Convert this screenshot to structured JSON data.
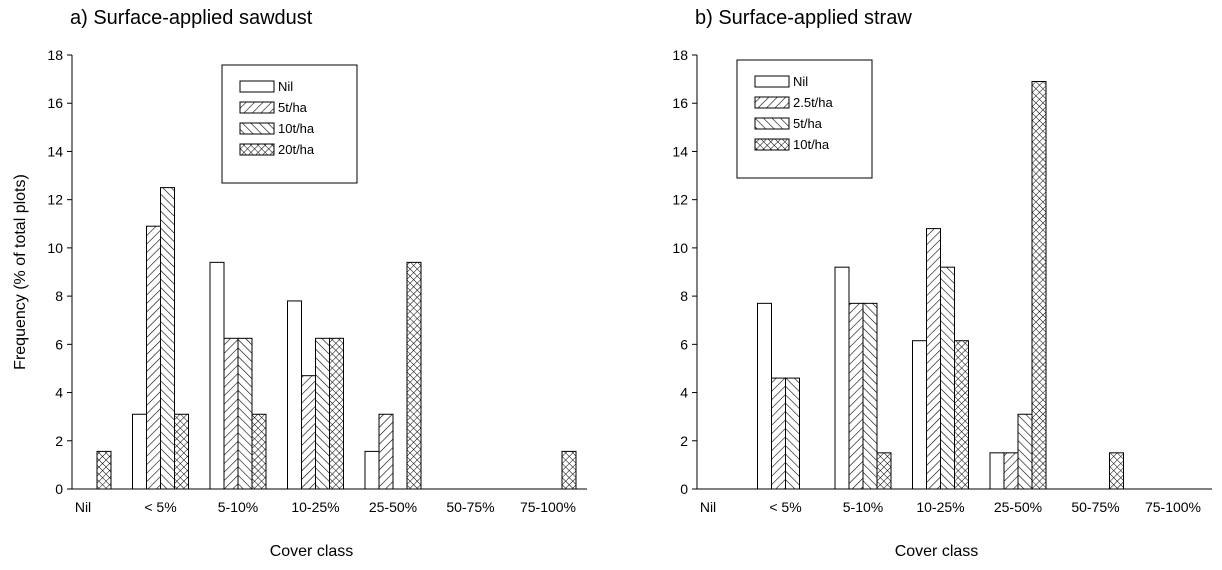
{
  "chart_data": [
    {
      "type": "bar",
      "title": "a) Surface-applied sawdust",
      "x_label": "Cover class",
      "y_label": "Frequency (% of total plots)",
      "categories": [
        "Nil",
        "< 5%",
        "5-10%",
        "10-25%",
        "25-50%",
        "50-75%",
        "75-100%"
      ],
      "series": [
        {
          "name": "Nil",
          "color": "#000000",
          "pattern": "none",
          "values": [
            0,
            3.1,
            9.4,
            7.8,
            1.56,
            0,
            0
          ]
        },
        {
          "name": "5t/ha",
          "color": "#000000",
          "pattern": "forward",
          "values": [
            0,
            10.9,
            6.25,
            4.7,
            3.1,
            0,
            0
          ]
        },
        {
          "name": "10t/ha",
          "color": "#000000",
          "pattern": "backward",
          "values": [
            0,
            12.5,
            6.25,
            6.25,
            0,
            0,
            0
          ]
        },
        {
          "name": "20t/ha",
          "color": "#000000",
          "pattern": "cross",
          "values": [
            1.56,
            3.1,
            3.1,
            6.25,
            9.4,
            0,
            1.56
          ]
        }
      ],
      "ylim": [
        0,
        18
      ],
      "yticks": [
        0,
        2,
        4,
        6,
        8,
        10,
        12,
        14,
        16,
        18
      ],
      "legend": "upper center"
    },
    {
      "type": "bar",
      "title": "b) Surface-applied straw",
      "x_label": "Cover class",
      "categories": [
        "Nil",
        "< 5%",
        "5-10%",
        "10-25%",
        "25-50%",
        "50-75%",
        "75-100%"
      ],
      "series": [
        {
          "name": "Nil",
          "color": "#000000",
          "pattern": "none",
          "values": [
            0,
            7.7,
            9.2,
            6.15,
            1.5,
            0,
            0
          ]
        },
        {
          "name": "2.5t/ha",
          "color": "#000000",
          "pattern": "forward",
          "values": [
            0,
            4.6,
            7.7,
            10.8,
            1.5,
            0,
            0
          ]
        },
        {
          "name": "5t/ha",
          "color": "#000000",
          "pattern": "backward",
          "values": [
            0,
            4.6,
            7.7,
            9.2,
            3.1,
            0,
            0
          ]
        },
        {
          "name": "10t/ha",
          "color": "#000000",
          "pattern": "cross",
          "values": [
            0,
            0,
            1.5,
            6.15,
            16.9,
            1.5,
            0
          ]
        }
      ],
      "ylim": [
        0,
        18
      ],
      "yticks": [
        0,
        2,
        4,
        6,
        8,
        10,
        12,
        14,
        16,
        18
      ],
      "legend": "upper left"
    }
  ]
}
